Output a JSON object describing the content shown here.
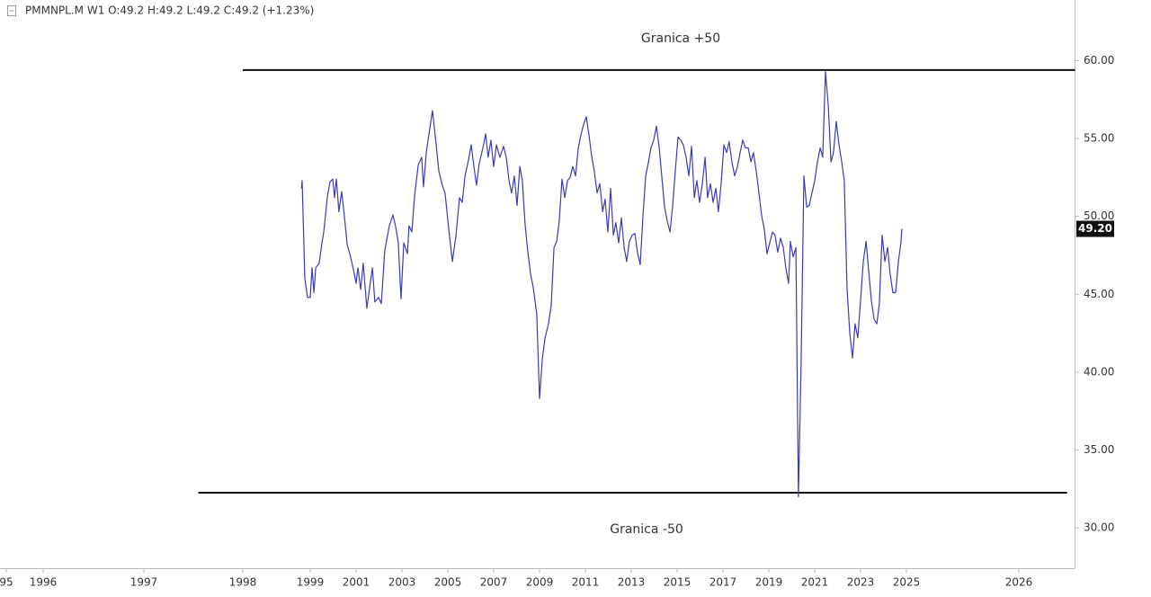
{
  "chart_data": {
    "type": "line",
    "header": "PMMNPL.M  W1  O:49.2  H:49.2  L:49.2  C:49.2  (+1.23%)",
    "series": [
      {
        "name": "PMMNPL.M",
        "color": "#3b3bb5",
        "x": [
          1998.87,
          1998.88,
          1998.92,
          1998.96,
          1999.0,
          1999.08,
          1999.16,
          1999.24,
          1999.39,
          1999.51,
          1999.59,
          1999.75,
          1999.86,
          1999.98,
          2000.06,
          2000.14,
          2000.25,
          2000.37,
          2000.49,
          2000.61,
          2000.76,
          2000.88,
          2001.0,
          2001.08,
          2001.2,
          2001.31,
          2001.47,
          2001.59,
          2001.71,
          2001.82,
          2001.98,
          2002.1,
          2002.25,
          2002.45,
          2002.61,
          2002.73,
          2002.84,
          2002.96,
          2003.08,
          2003.24,
          2003.31,
          2003.43,
          2003.55,
          2003.71,
          2003.86,
          2003.94,
          2004.06,
          2004.22,
          2004.33,
          2004.45,
          2004.61,
          2004.76,
          2004.88,
          2005.04,
          2005.2,
          2005.35,
          2005.51,
          2005.63,
          2005.75,
          2005.9,
          2006.02,
          2006.14,
          2006.25,
          2006.37,
          2006.53,
          2006.65,
          2006.76,
          2006.88,
          2007.0,
          2007.12,
          2007.27,
          2007.43,
          2007.55,
          2007.67,
          2007.78,
          2007.9,
          2008.02,
          2008.14,
          2008.25,
          2008.37,
          2008.49,
          2008.61,
          2008.73,
          2008.88,
          2009.0,
          2009.12,
          2009.24,
          2009.39,
          2009.51,
          2009.63,
          2009.75,
          2009.86,
          2009.98,
          2010.1,
          2010.22,
          2010.33,
          2010.45,
          2010.57,
          2010.69,
          2010.8,
          2010.92,
          2011.04,
          2011.16,
          2011.27,
          2011.39,
          2011.51,
          2011.63,
          2011.75,
          2011.86,
          2011.98,
          2012.1,
          2012.22,
          2012.33,
          2012.45,
          2012.57,
          2012.69,
          2012.8,
          2012.92,
          2013.04,
          2013.16,
          2013.27,
          2013.39,
          2013.51,
          2013.63,
          2013.75,
          2013.86,
          2013.98,
          2014.1,
          2014.22,
          2014.33,
          2014.45,
          2014.57,
          2014.69,
          2014.8,
          2014.92,
          2015.04,
          2015.16,
          2015.27,
          2015.39,
          2015.51,
          2015.63,
          2015.75,
          2015.86,
          2015.98,
          2016.1,
          2016.22,
          2016.33,
          2016.45,
          2016.57,
          2016.69,
          2016.8,
          2016.92,
          2017.04,
          2017.16,
          2017.27,
          2017.39,
          2017.51,
          2017.63,
          2017.75,
          2017.86,
          2017.98,
          2018.1,
          2018.22,
          2018.33,
          2018.45,
          2018.57,
          2018.69,
          2018.8,
          2018.92,
          2019.04,
          2019.16,
          2019.27,
          2019.39,
          2019.51,
          2019.63,
          2019.75,
          2019.86,
          2019.94,
          2020.06,
          2020.18,
          2020.29,
          2020.41,
          2020.53,
          2020.65,
          2020.76,
          2020.88,
          2021.0,
          2021.12,
          2021.24,
          2021.35,
          2021.47,
          2021.59,
          2021.71,
          2021.82,
          2021.94,
          2022.06,
          2022.18,
          2022.29,
          2022.41,
          2022.53,
          2022.65,
          2022.76,
          2022.88,
          2023.0,
          2023.12,
          2023.24,
          2023.35,
          2023.47,
          2023.59,
          2023.71,
          2023.82,
          2023.94,
          2024.06,
          2024.18,
          2024.29,
          2024.41,
          2024.53,
          2024.65,
          2024.76,
          2024.8
        ],
        "values": [
          51.8,
          52.3,
          46.0,
          44.8,
          44.8,
          46.7,
          45.1,
          46.7,
          47.0,
          48.3,
          49.0,
          51.3,
          52.2,
          52.4,
          51.2,
          52.4,
          50.3,
          51.6,
          50.0,
          48.2,
          47.4,
          46.6,
          45.7,
          46.7,
          45.3,
          47.0,
          44.1,
          45.4,
          46.7,
          44.5,
          44.8,
          44.4,
          47.8,
          49.4,
          50.1,
          49.3,
          48.3,
          44.7,
          48.3,
          47.6,
          49.4,
          49.0,
          51.3,
          53.3,
          53.8,
          51.9,
          54.1,
          55.7,
          56.8,
          55.2,
          52.9,
          52.0,
          51.5,
          49.2,
          47.1,
          48.7,
          51.2,
          50.9,
          52.6,
          53.6,
          54.6,
          53.2,
          52.0,
          53.4,
          54.4,
          55.3,
          53.8,
          54.9,
          53.2,
          54.6,
          53.8,
          54.5,
          53.8,
          52.3,
          51.5,
          52.6,
          50.7,
          53.2,
          52.3,
          49.5,
          47.7,
          46.3,
          45.4,
          43.7,
          38.3,
          40.8,
          42.2,
          43.1,
          44.3,
          48.0,
          48.4,
          49.7,
          52.4,
          51.2,
          52.3,
          52.5,
          53.2,
          52.6,
          54.4,
          55.2,
          55.9,
          56.4,
          55.2,
          53.9,
          52.9,
          51.5,
          52.1,
          50.3,
          51.1,
          49.0,
          51.8,
          48.8,
          49.6,
          48.3,
          49.9,
          48.0,
          47.1,
          48.4,
          48.8,
          48.9,
          47.7,
          46.9,
          50.0,
          52.6,
          53.5,
          54.4,
          54.9,
          55.8,
          54.4,
          52.6,
          50.6,
          49.7,
          49.0,
          50.6,
          52.9,
          55.1,
          54.9,
          54.6,
          53.8,
          52.6,
          54.5,
          51.2,
          52.3,
          50.9,
          52.1,
          53.8,
          51.2,
          52.1,
          50.9,
          51.8,
          50.3,
          52.1,
          54.6,
          54.1,
          54.8,
          53.5,
          52.6,
          53.2,
          54.1,
          54.9,
          54.4,
          54.4,
          53.5,
          54.1,
          52.9,
          51.5,
          50.0,
          49.2,
          47.6,
          48.3,
          49.0,
          48.8,
          47.7,
          48.6,
          48.0,
          46.6,
          45.7,
          48.4,
          47.4,
          48.0,
          32.0,
          40.8,
          52.6,
          50.6,
          50.7,
          51.5,
          52.3,
          53.5,
          54.4,
          53.8,
          59.3,
          57.2,
          53.5,
          54.1,
          56.1,
          54.6,
          53.5,
          52.3,
          45.4,
          42.5,
          40.9,
          43.1,
          42.2,
          44.6,
          47.1,
          48.4,
          46.6,
          44.6,
          43.4,
          43.1,
          44.4,
          48.8,
          47.1,
          48.0,
          46.3,
          45.1,
          45.1,
          47.1,
          48.3,
          49.2
        ]
      }
    ],
    "last_price": {
      "value": 49.2,
      "label": "49.20"
    },
    "hlines": [
      {
        "label": "Granica +50",
        "y": 59.4,
        "x": [
          1998,
          2026.5
        ]
      },
      {
        "label": "Granica -50",
        "y": 32.25,
        "x": [
          1997.55,
          2026.43
        ]
      }
    ],
    "ylim": [
      27.4,
      63.9
    ],
    "yticks": [
      {
        "value": 30,
        "label": "30.00"
      },
      {
        "value": 35,
        "label": "35.00"
      },
      {
        "value": 40,
        "label": "40.00"
      },
      {
        "value": 45,
        "label": "45.00"
      },
      {
        "value": 50,
        "label": "50.00"
      },
      {
        "value": 55,
        "label": "55.00"
      },
      {
        "value": 60,
        "label": "60.00"
      }
    ],
    "xticks": [
      {
        "value": 1995,
        "label": "95"
      },
      1996,
      1997,
      1998,
      1999,
      2001,
      2003,
      2005,
      2007,
      2009,
      2011,
      2013,
      2015,
      2017,
      2019,
      2021,
      2023,
      2025,
      2026
    ]
  }
}
